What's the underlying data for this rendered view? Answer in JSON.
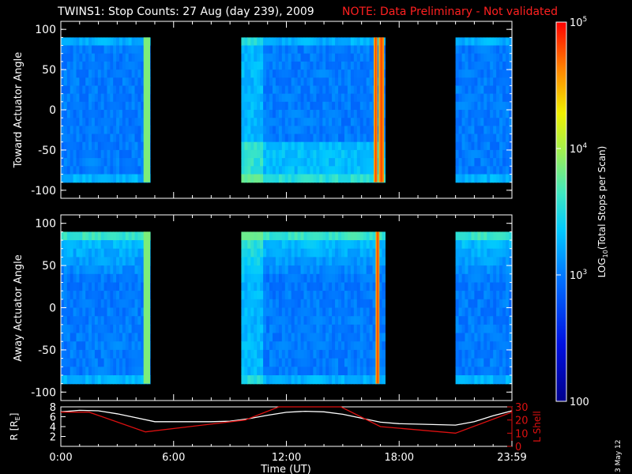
{
  "title": "TWINS1: Stop Counts: 27 Aug (day 239), 2009",
  "note": "NOTE: Data Preliminary - Not validated",
  "date_stamp": "3 May 12",
  "colors": {
    "background": "#000000",
    "axes": "#ffffff",
    "note": "#ff2020",
    "l_shell": "#dd1010",
    "r": "#ffffff"
  },
  "chart_data": [
    {
      "type": "heatmap",
      "name": "toward",
      "ylabel": "Toward Actuator Angle",
      "ylim": [
        -110,
        110
      ],
      "yticks": [
        -100,
        -50,
        0,
        50,
        100
      ],
      "xlim": [
        0,
        24
      ],
      "data_segments": [
        [
          0,
          4.75
        ],
        [
          9.6,
          17.25
        ],
        [
          21,
          24
        ]
      ],
      "high_count_bands": [
        [
          16.65,
          16.85
        ],
        [
          16.9,
          17.2
        ]
      ],
      "angle_range": [
        -90,
        90
      ]
    },
    {
      "type": "heatmap",
      "name": "away",
      "ylabel": "Away Actuator Angle",
      "ylim": [
        -110,
        110
      ],
      "yticks": [
        -100,
        -50,
        0,
        50,
        100
      ],
      "xlim": [
        0,
        24
      ],
      "data_segments": [
        [
          0,
          4.75
        ],
        [
          9.6,
          17.25
        ],
        [
          21,
          24
        ]
      ],
      "high_count_bands": [
        [
          16.75,
          16.95
        ]
      ],
      "angle_range": [
        -90,
        90
      ]
    },
    {
      "type": "line",
      "name": "orbit",
      "xlabel": "Time (UT)",
      "xticks": [
        "0:00",
        "6:00",
        "12:00",
        "18:00",
        "23:59"
      ],
      "xtick_hours": [
        0,
        6,
        12,
        18,
        24
      ],
      "xlim": [
        0,
        24
      ],
      "ylabel": "R [RE]",
      "ylabel_sub": "E",
      "ylim": [
        0,
        8
      ],
      "yticks": [
        2,
        4,
        6,
        8
      ],
      "y2label": "L Shell",
      "y2lim": [
        0,
        30
      ],
      "y2ticks": [
        0,
        10,
        20,
        30
      ],
      "series": [
        {
          "name": "R",
          "x": [
            0,
            1,
            2,
            3,
            4,
            5,
            6,
            7,
            8,
            9,
            10,
            11,
            12,
            13,
            14,
            15,
            16,
            17,
            18,
            19,
            20,
            21,
            22,
            23,
            24
          ],
          "values": [
            7.0,
            7.3,
            7.2,
            6.6,
            5.8,
            5.0,
            5.0,
            5.0,
            5.0,
            5.1,
            5.6,
            6.3,
            6.9,
            7.1,
            7.0,
            6.5,
            5.7,
            4.9,
            4.6,
            4.5,
            4.4,
            4.3,
            5.0,
            6.2,
            7.2
          ]
        },
        {
          "name": "L Shell",
          "x": [
            0,
            1.5,
            4.5,
            9.8,
            11.6,
            14.9,
            17.0,
            21.0,
            24.0
          ],
          "values": [
            26,
            26,
            11,
            20,
            31,
            31,
            15,
            10,
            26
          ]
        }
      ]
    }
  ],
  "colorbar": {
    "label": "LOG10(Total Stops per Scan)",
    "label_main": "LOG",
    "label_sub": "10",
    "label_rest": "(Total Stops per Scan)",
    "min": 100,
    "max": 100000,
    "ticks": [
      {
        "value": 100,
        "base": "100",
        "exp": ""
      },
      {
        "value": 1000,
        "base": "10",
        "exp": "3"
      },
      {
        "value": 10000,
        "base": "10",
        "exp": "4"
      },
      {
        "value": 100000,
        "base": "10",
        "exp": "5"
      }
    ]
  }
}
